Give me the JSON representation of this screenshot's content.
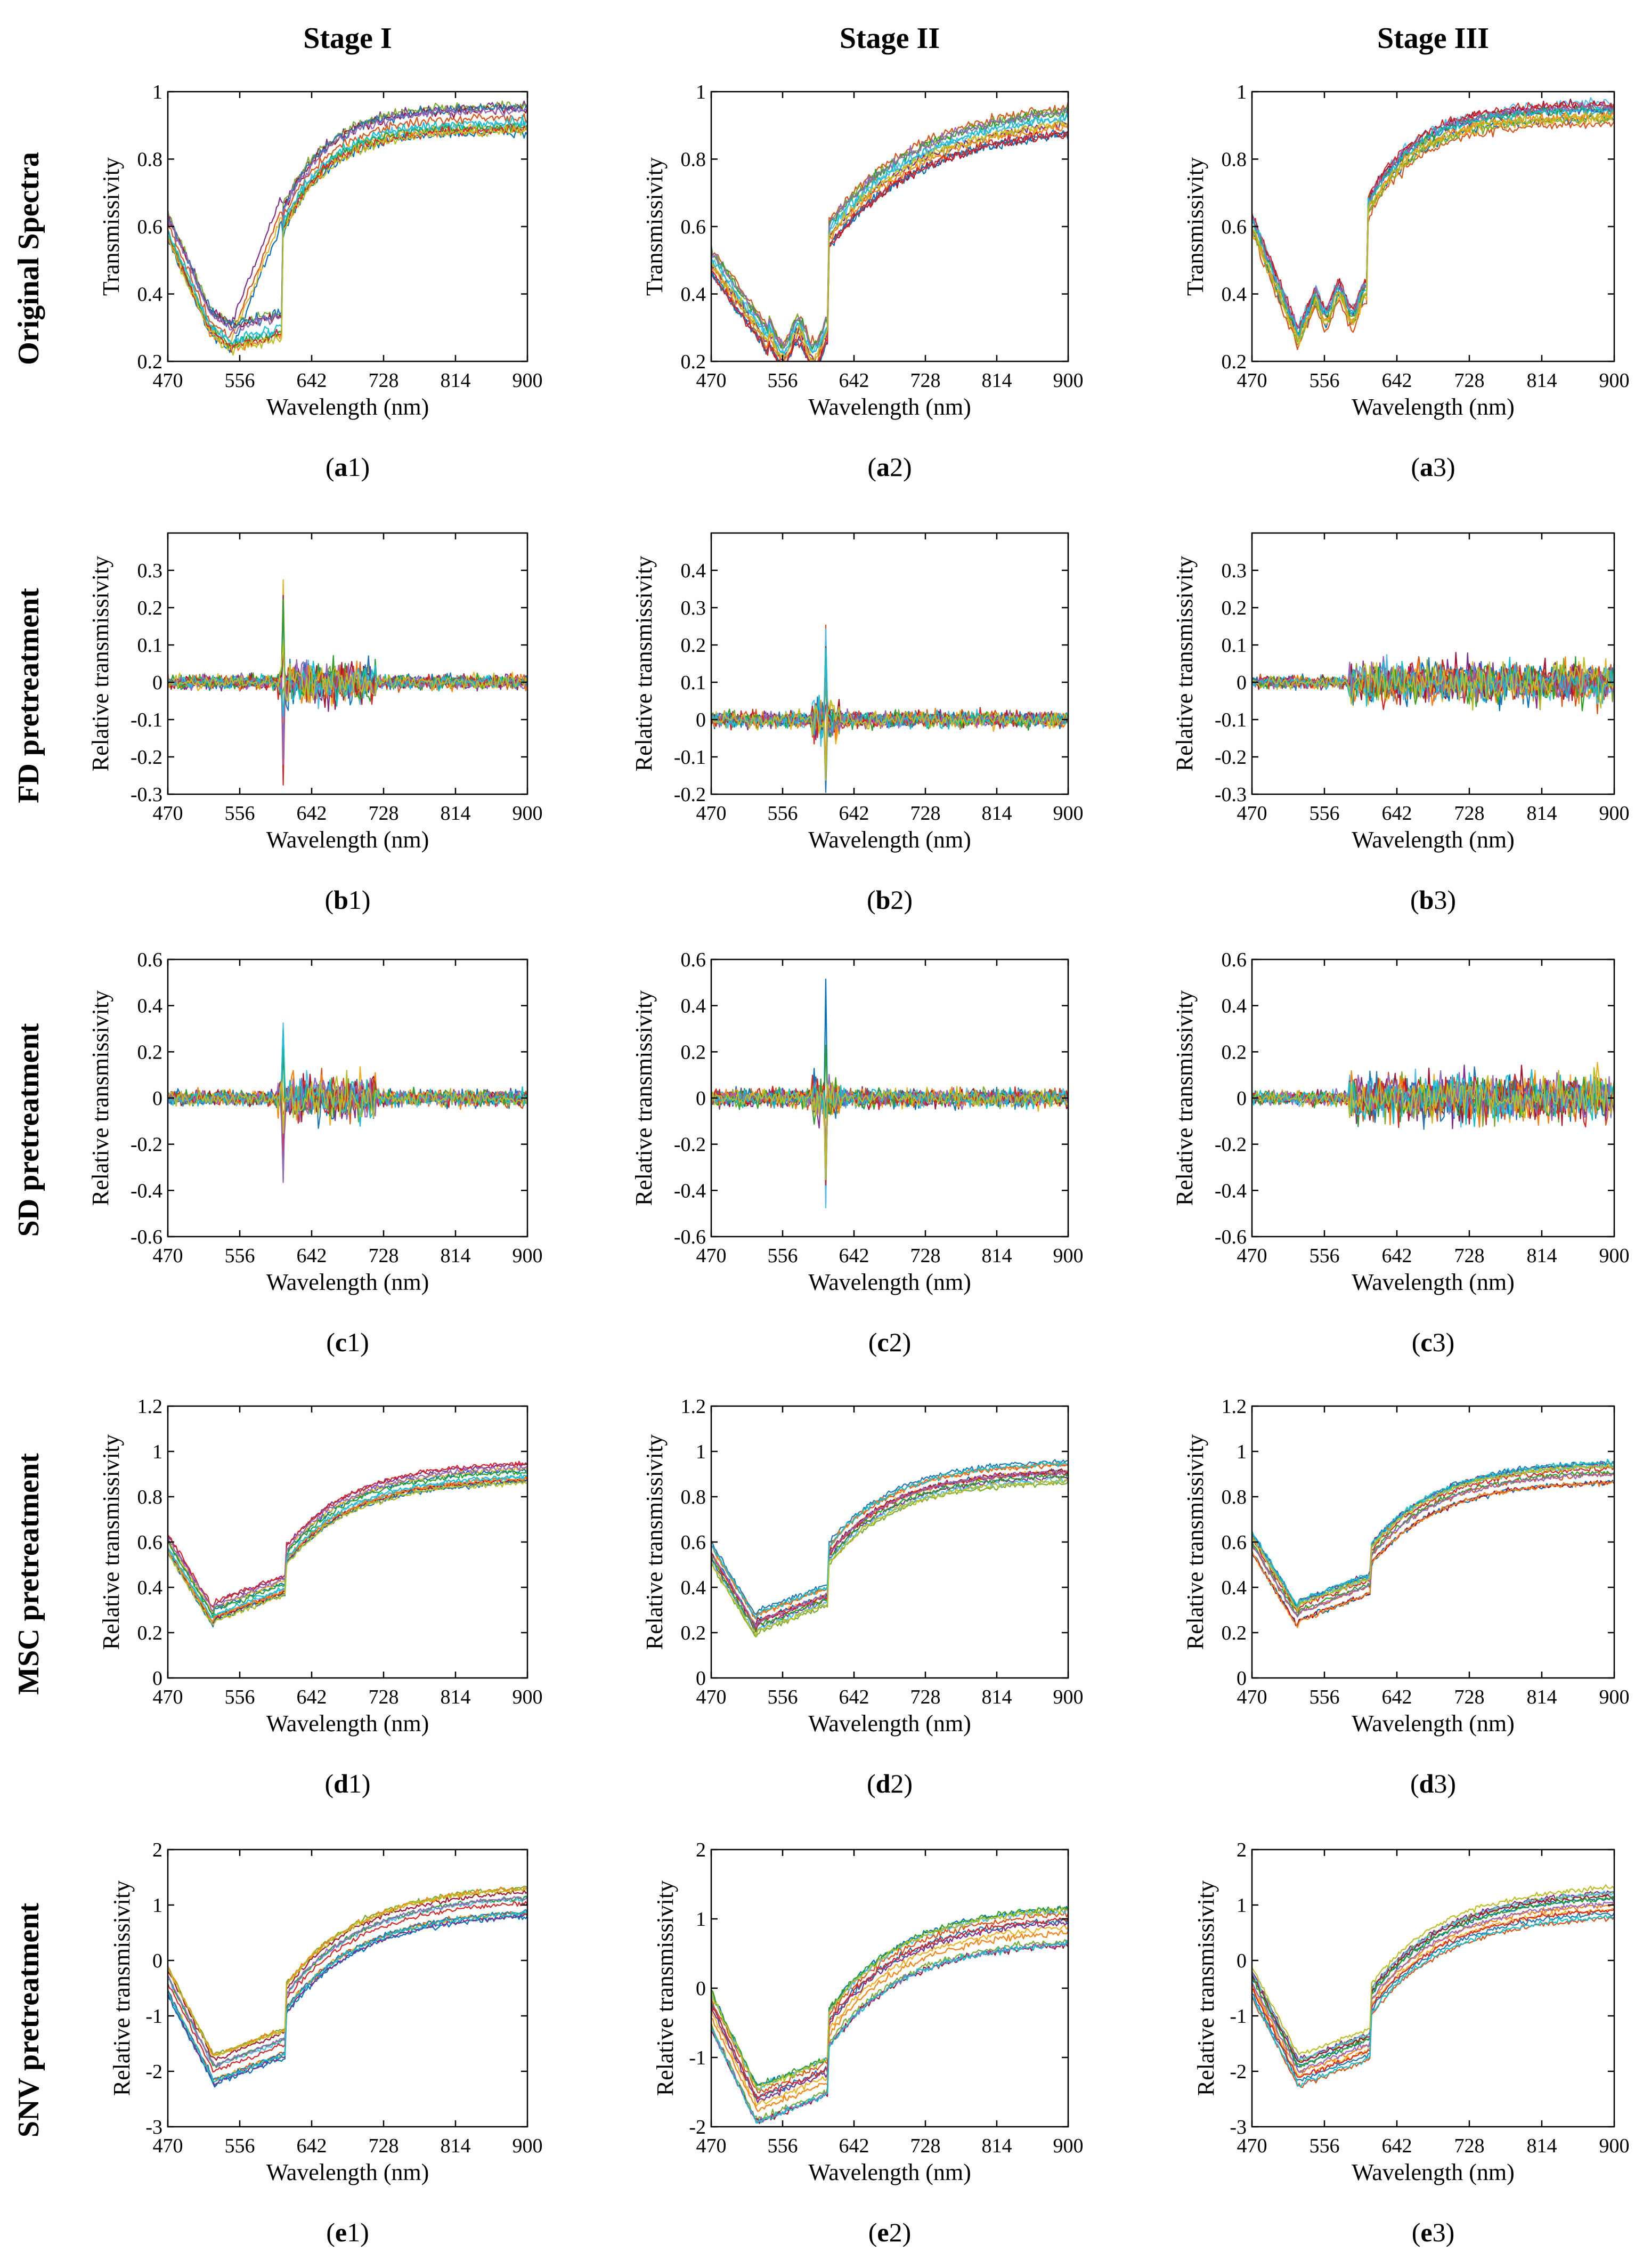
{
  "figure": {
    "column_titles": [
      "Stage I",
      "Stage II",
      "Stage III"
    ],
    "row_titles": [
      "Original Spectra",
      "FD pretreatment",
      "SD pretreatment",
      "MSC pretreatment",
      "SNV pretreatment"
    ]
  },
  "chart_data": [
    {
      "id": "a1",
      "type": "line",
      "panel_label": "a",
      "panel_number": "1",
      "xlabel": "Wavelength (nm)",
      "ylabel": "Transmissivity",
      "xticks": [
        "470",
        "556",
        "642",
        "728",
        "814",
        "900"
      ],
      "xlim": [
        470,
        900
      ],
      "ylim": [
        0.2,
        1
      ],
      "yticks": [
        "0.2",
        "0.4",
        "0.6",
        "0.8",
        "1"
      ],
      "profile": "original",
      "stage": 1
    },
    {
      "id": "a2",
      "type": "line",
      "panel_label": "a",
      "panel_number": "2",
      "xlabel": "Wavelength (nm)",
      "ylabel": "Transmissivity",
      "xticks": [
        "470",
        "556",
        "642",
        "728",
        "814",
        "900"
      ],
      "xlim": [
        470,
        900
      ],
      "ylim": [
        0.2,
        1
      ],
      "yticks": [
        "0.2",
        "0.4",
        "0.6",
        "0.8",
        "1"
      ],
      "profile": "original",
      "stage": 2
    },
    {
      "id": "a3",
      "type": "line",
      "panel_label": "a",
      "panel_number": "3",
      "xlabel": "Wavelength (nm)",
      "ylabel": "Transmissivity",
      "xticks": [
        "470",
        "556",
        "642",
        "728",
        "814",
        "900"
      ],
      "xlim": [
        470,
        900
      ],
      "ylim": [
        0.2,
        1
      ],
      "yticks": [
        "0.2",
        "0.4",
        "0.6",
        "0.8",
        "1"
      ],
      "profile": "original",
      "stage": 3
    },
    {
      "id": "b1",
      "type": "line",
      "panel_label": "b",
      "panel_number": "1",
      "xlabel": "Wavelength (nm)",
      "ylabel": "Relative transmissivity",
      "xticks": [
        "470",
        "556",
        "642",
        "728",
        "814",
        "900"
      ],
      "xlim": [
        470,
        900
      ],
      "ylim": [
        -0.3,
        0.4
      ],
      "yticks": [
        "-0.3",
        "-0.2",
        "-0.1",
        "0",
        "0.1",
        "0.2",
        "0.3"
      ],
      "profile": "deriv1",
      "stage": 1
    },
    {
      "id": "b2",
      "type": "line",
      "panel_label": "b",
      "panel_number": "2",
      "xlabel": "Wavelength (nm)",
      "ylabel": "Relative transmissivity",
      "xticks": [
        "470",
        "556",
        "642",
        "728",
        "814",
        "900"
      ],
      "xlim": [
        470,
        900
      ],
      "ylim": [
        -0.2,
        0.5
      ],
      "yticks": [
        "-0.2",
        "-0.1",
        "0",
        "0.1",
        "0.2",
        "0.3",
        "0.4"
      ],
      "profile": "deriv1",
      "stage": 2
    },
    {
      "id": "b3",
      "type": "line",
      "panel_label": "b",
      "panel_number": "3",
      "xlabel": "Wavelength (nm)",
      "ylabel": "Relative transmissivity",
      "xticks": [
        "470",
        "556",
        "642",
        "728",
        "814",
        "900"
      ],
      "xlim": [
        470,
        900
      ],
      "ylim": [
        -0.3,
        0.4
      ],
      "yticks": [
        "-0.3",
        "-0.2",
        "-0.1",
        "0",
        "0.1",
        "0.2",
        "0.3"
      ],
      "profile": "deriv1",
      "stage": 3
    },
    {
      "id": "c1",
      "type": "line",
      "panel_label": "c",
      "panel_number": "1",
      "xlabel": "Wavelength (nm)",
      "ylabel": "Relative transmissivity",
      "xticks": [
        "470",
        "556",
        "642",
        "728",
        "814",
        "900"
      ],
      "xlim": [
        470,
        900
      ],
      "ylim": [
        -0.6,
        0.6
      ],
      "yticks": [
        "-0.6",
        "-0.4",
        "-0.2",
        "0",
        "0.2",
        "0.4",
        "0.6"
      ],
      "profile": "deriv2",
      "stage": 1
    },
    {
      "id": "c2",
      "type": "line",
      "panel_label": "c",
      "panel_number": "2",
      "xlabel": "Wavelength (nm)",
      "ylabel": "Relative transmissivity",
      "xticks": [
        "470",
        "556",
        "642",
        "728",
        "814",
        "900"
      ],
      "xlim": [
        470,
        900
      ],
      "ylim": [
        -0.6,
        0.6
      ],
      "yticks": [
        "-0.6",
        "-0.4",
        "-0.2",
        "0",
        "0.2",
        "0.4",
        "0.6"
      ],
      "profile": "deriv2",
      "stage": 2
    },
    {
      "id": "c3",
      "type": "line",
      "panel_label": "c",
      "panel_number": "3",
      "xlabel": "Wavelength (nm)",
      "ylabel": "Relative transmissivity",
      "xticks": [
        "470",
        "556",
        "642",
        "728",
        "814",
        "900"
      ],
      "xlim": [
        470,
        900
      ],
      "ylim": [
        -0.6,
        0.6
      ],
      "yticks": [
        "-0.6",
        "-0.4",
        "-0.2",
        "0",
        "0.2",
        "0.4",
        "0.6"
      ],
      "profile": "deriv2",
      "stage": 3
    },
    {
      "id": "d1",
      "type": "line",
      "panel_label": "d",
      "panel_number": "1",
      "xlabel": "Wavelength (nm)",
      "ylabel": "Relative transmissivity",
      "xticks": [
        "470",
        "556",
        "642",
        "728",
        "814",
        "900"
      ],
      "xlim": [
        470,
        900
      ],
      "ylim": [
        0,
        1.2
      ],
      "yticks": [
        "0",
        "0.2",
        "0.4",
        "0.6",
        "0.8",
        "1",
        "1.2"
      ],
      "profile": "msc",
      "stage": 1
    },
    {
      "id": "d2",
      "type": "line",
      "panel_label": "d",
      "panel_number": "2",
      "xlabel": "Wavelength (nm)",
      "ylabel": "Relative transmissivity",
      "xticks": [
        "470",
        "556",
        "642",
        "728",
        "814",
        "900"
      ],
      "xlim": [
        470,
        900
      ],
      "ylim": [
        0,
        1.2
      ],
      "yticks": [
        "0",
        "0.2",
        "0.4",
        "0.6",
        "0.8",
        "1",
        "1.2"
      ],
      "profile": "msc",
      "stage": 2
    },
    {
      "id": "d3",
      "type": "line",
      "panel_label": "d",
      "panel_number": "3",
      "xlabel": "Wavelength (nm)",
      "ylabel": "Relative transmissivity",
      "xticks": [
        "470",
        "556",
        "642",
        "728",
        "814",
        "900"
      ],
      "xlim": [
        470,
        900
      ],
      "ylim": [
        0,
        1.2
      ],
      "yticks": [
        "0",
        "0.2",
        "0.4",
        "0.6",
        "0.8",
        "1",
        "1.2"
      ],
      "profile": "msc",
      "stage": 3
    },
    {
      "id": "e1",
      "type": "line",
      "panel_label": "e",
      "panel_number": "1",
      "xlabel": "Wavelength (nm)",
      "ylabel": "Relative transmissivity",
      "xticks": [
        "470",
        "556",
        "642",
        "728",
        "814",
        "900"
      ],
      "xlim": [
        470,
        900
      ],
      "ylim": [
        -3,
        2
      ],
      "yticks": [
        "-3",
        "-2",
        "-1",
        "0",
        "1",
        "2"
      ],
      "profile": "snv",
      "stage": 1
    },
    {
      "id": "e2",
      "type": "line",
      "panel_label": "e",
      "panel_number": "2",
      "xlabel": "Wavelength (nm)",
      "ylabel": "Relative transmissivity",
      "xticks": [
        "470",
        "556",
        "642",
        "728",
        "814",
        "900"
      ],
      "xlim": [
        470,
        900
      ],
      "ylim": [
        -2,
        2
      ],
      "yticks": [
        "-2",
        "-1",
        "0",
        "1",
        "2"
      ],
      "profile": "snv",
      "stage": 2
    },
    {
      "id": "e3",
      "type": "line",
      "panel_label": "e",
      "panel_number": "3",
      "xlabel": "Wavelength (nm)",
      "ylabel": "Relative transmissivity",
      "xticks": [
        "470",
        "556",
        "642",
        "728",
        "814",
        "900"
      ],
      "xlim": [
        470,
        900
      ],
      "ylim": [
        -3,
        2
      ],
      "yticks": [
        "-3",
        "-2",
        "-1",
        "0",
        "1",
        "2"
      ],
      "profile": "snv",
      "stage": 3
    }
  ],
  "series_style": {
    "series_per_panel": 14,
    "colors": [
      "#0072BD",
      "#D95319",
      "#EDB120",
      "#7E2F8E",
      "#77AC30",
      "#4DBEEE",
      "#A2142F",
      "#1f77b4",
      "#ff7f0e",
      "#2ca02c",
      "#d62728",
      "#9467bd",
      "#17becf",
      "#bcbd22"
    ]
  }
}
